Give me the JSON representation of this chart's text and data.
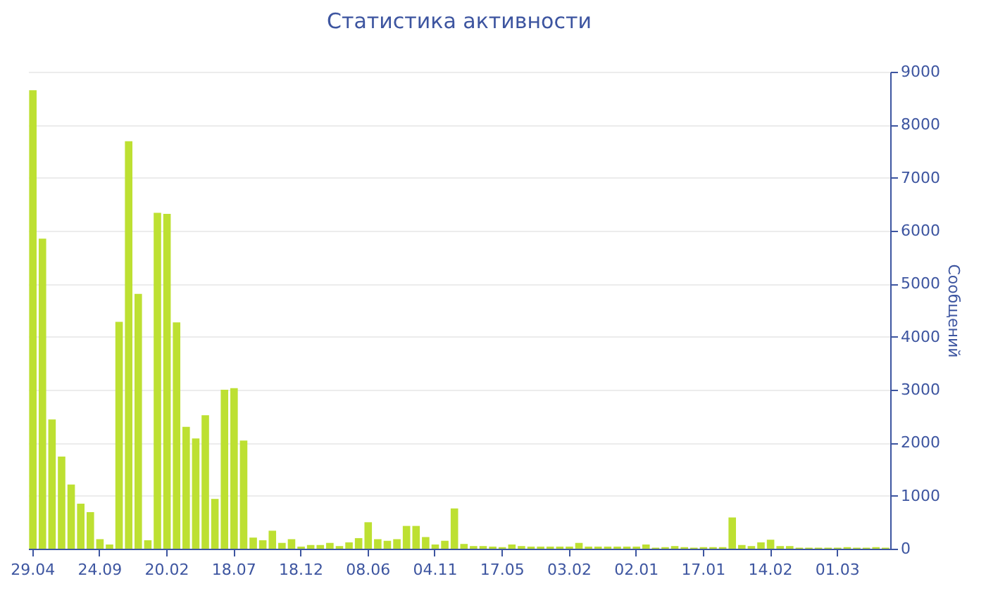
{
  "chart_data": {
    "type": "bar",
    "title": "Статистика активности",
    "ylabel": "Сообщений",
    "categories": [
      "29.04",
      null,
      null,
      null,
      null,
      null,
      null,
      "24.09",
      null,
      null,
      null,
      null,
      null,
      null,
      "20.02",
      null,
      null,
      null,
      null,
      null,
      null,
      "18.07",
      null,
      null,
      null,
      null,
      null,
      null,
      "18.12",
      null,
      null,
      null,
      null,
      null,
      null,
      "08.06",
      null,
      null,
      null,
      null,
      null,
      null,
      "04.11",
      null,
      null,
      null,
      null,
      null,
      null,
      "17.05",
      null,
      null,
      null,
      null,
      null,
      null,
      "03.02",
      null,
      null,
      null,
      null,
      null,
      null,
      "02.01",
      null,
      null,
      null,
      null,
      null,
      null,
      "17.01",
      null,
      null,
      null,
      null,
      null,
      null,
      "14.02",
      null,
      null,
      null,
      null,
      null,
      null,
      "01.03",
      null,
      null,
      null,
      null,
      null
    ],
    "values": [
      8650,
      5850,
      2440,
      1740,
      1210,
      850,
      690,
      180,
      80,
      4280,
      7690,
      4810,
      160,
      6340,
      6320,
      4270,
      2300,
      2080,
      2520,
      940,
      3000,
      3030,
      2040,
      210,
      160,
      340,
      110,
      180,
      40,
      70,
      70,
      110,
      50,
      120,
      200,
      500,
      180,
      150,
      180,
      430,
      430,
      220,
      80,
      150,
      760,
      90,
      50,
      50,
      40,
      30,
      80,
      50,
      40,
      40,
      40,
      40,
      40,
      110,
      40,
      40,
      40,
      40,
      40,
      40,
      80,
      20,
      30,
      50,
      30,
      20,
      30,
      30,
      30,
      590,
      70,
      50,
      120,
      170,
      50,
      50,
      20,
      20,
      20,
      20,
      20,
      30,
      20,
      20,
      30,
      20
    ],
    "color": "#bde032",
    "ylim": [
      0,
      9000
    ],
    "yticks": [
      0,
      1000,
      2000,
      3000,
      4000,
      5000,
      6000,
      7000,
      8000,
      9000
    ],
    "grid": "y"
  }
}
